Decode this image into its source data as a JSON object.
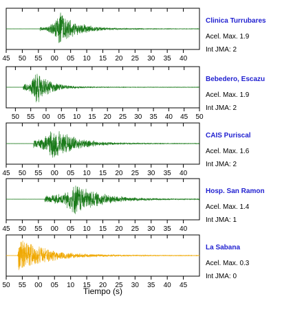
{
  "chart_data": {
    "type": "line",
    "xlabel": "Tiempo (s)",
    "panels": [
      {
        "station": "Clinica Turrubares",
        "acel_max": "Acel. Max. 1.9",
        "int_jma": "Int JMA: 2",
        "color": "#1a7a1a",
        "xlim": [
          45,
          105
        ],
        "ticks": [
          45,
          50,
          55,
          60,
          65,
          70,
          75,
          80,
          85,
          90,
          95,
          100
        ],
        "tick_labels": [
          "45",
          "50",
          "55",
          "00",
          "05",
          "10",
          "15",
          "20",
          "25",
          "30",
          "35",
          "40"
        ],
        "onset": 55.5,
        "peak_time": 61.5,
        "peak_amp": 1.0,
        "pre_amp": 0.12,
        "decay": 5.5
      },
      {
        "station": "Bebedero, Escazu",
        "acel_max": "Acel. Max. 1.9",
        "int_jma": "Int JMA: 2",
        "color": "#1a7a1a",
        "xlim": [
          47,
          110
        ],
        "ticks": [
          50,
          55,
          60,
          65,
          70,
          75,
          80,
          85,
          90,
          95,
          100,
          105,
          110
        ],
        "tick_labels": [
          "50",
          "55",
          "00",
          "05",
          "10",
          "15",
          "20",
          "25",
          "30",
          "35",
          "40",
          "45",
          "50"
        ],
        "onset": 52.5,
        "peak_time": 56.5,
        "peak_amp": 1.0,
        "pre_amp": 0.2,
        "decay": 4.5
      },
      {
        "station": "CAIS Puriscal",
        "acel_max": "Acel. Max. 1.6",
        "int_jma": "Int JMA: 2",
        "color": "#1a7a1a",
        "xlim": [
          45,
          105
        ],
        "ticks": [
          45,
          50,
          55,
          60,
          65,
          70,
          75,
          80,
          85,
          90,
          95,
          100
        ],
        "tick_labels": [
          "45",
          "50",
          "55",
          "00",
          "05",
          "10",
          "15",
          "20",
          "25",
          "30",
          "35",
          "40"
        ],
        "onset": 53.5,
        "peak_time": 59.5,
        "peak_amp": 0.95,
        "pre_amp": 0.25,
        "decay": 7.0
      },
      {
        "station": "Hosp. San Ramon",
        "acel_max": "Acel. Max. 1.4",
        "int_jma": "Int JMA: 1",
        "color": "#1a7a1a",
        "xlim": [
          45,
          105
        ],
        "ticks": [
          45,
          50,
          55,
          60,
          65,
          70,
          75,
          80,
          85,
          90,
          95,
          100
        ],
        "tick_labels": [
          "45",
          "50",
          "55",
          "00",
          "05",
          "10",
          "15",
          "20",
          "25",
          "30",
          "35",
          "40"
        ],
        "onset": 57.0,
        "peak_time": 66.5,
        "peak_amp": 0.9,
        "pre_amp": 0.22,
        "decay": 8.0
      },
      {
        "station": "La Sabana",
        "acel_max": "Acel. Max. 0.3",
        "int_jma": "Int JMA: 0",
        "color": "#f0a800",
        "xlim": [
          50,
          110
        ],
        "ticks": [
          50,
          55,
          60,
          65,
          70,
          75,
          80,
          85,
          90,
          95,
          100,
          105
        ],
        "tick_labels": [
          "50",
          "55",
          "00",
          "05",
          "10",
          "15",
          "20",
          "25",
          "30",
          "35",
          "40",
          "45"
        ],
        "onset": 53.5,
        "peak_time": 53.8,
        "peak_amp": 1.0,
        "pre_amp": 0.05,
        "decay": 9.0
      }
    ]
  }
}
